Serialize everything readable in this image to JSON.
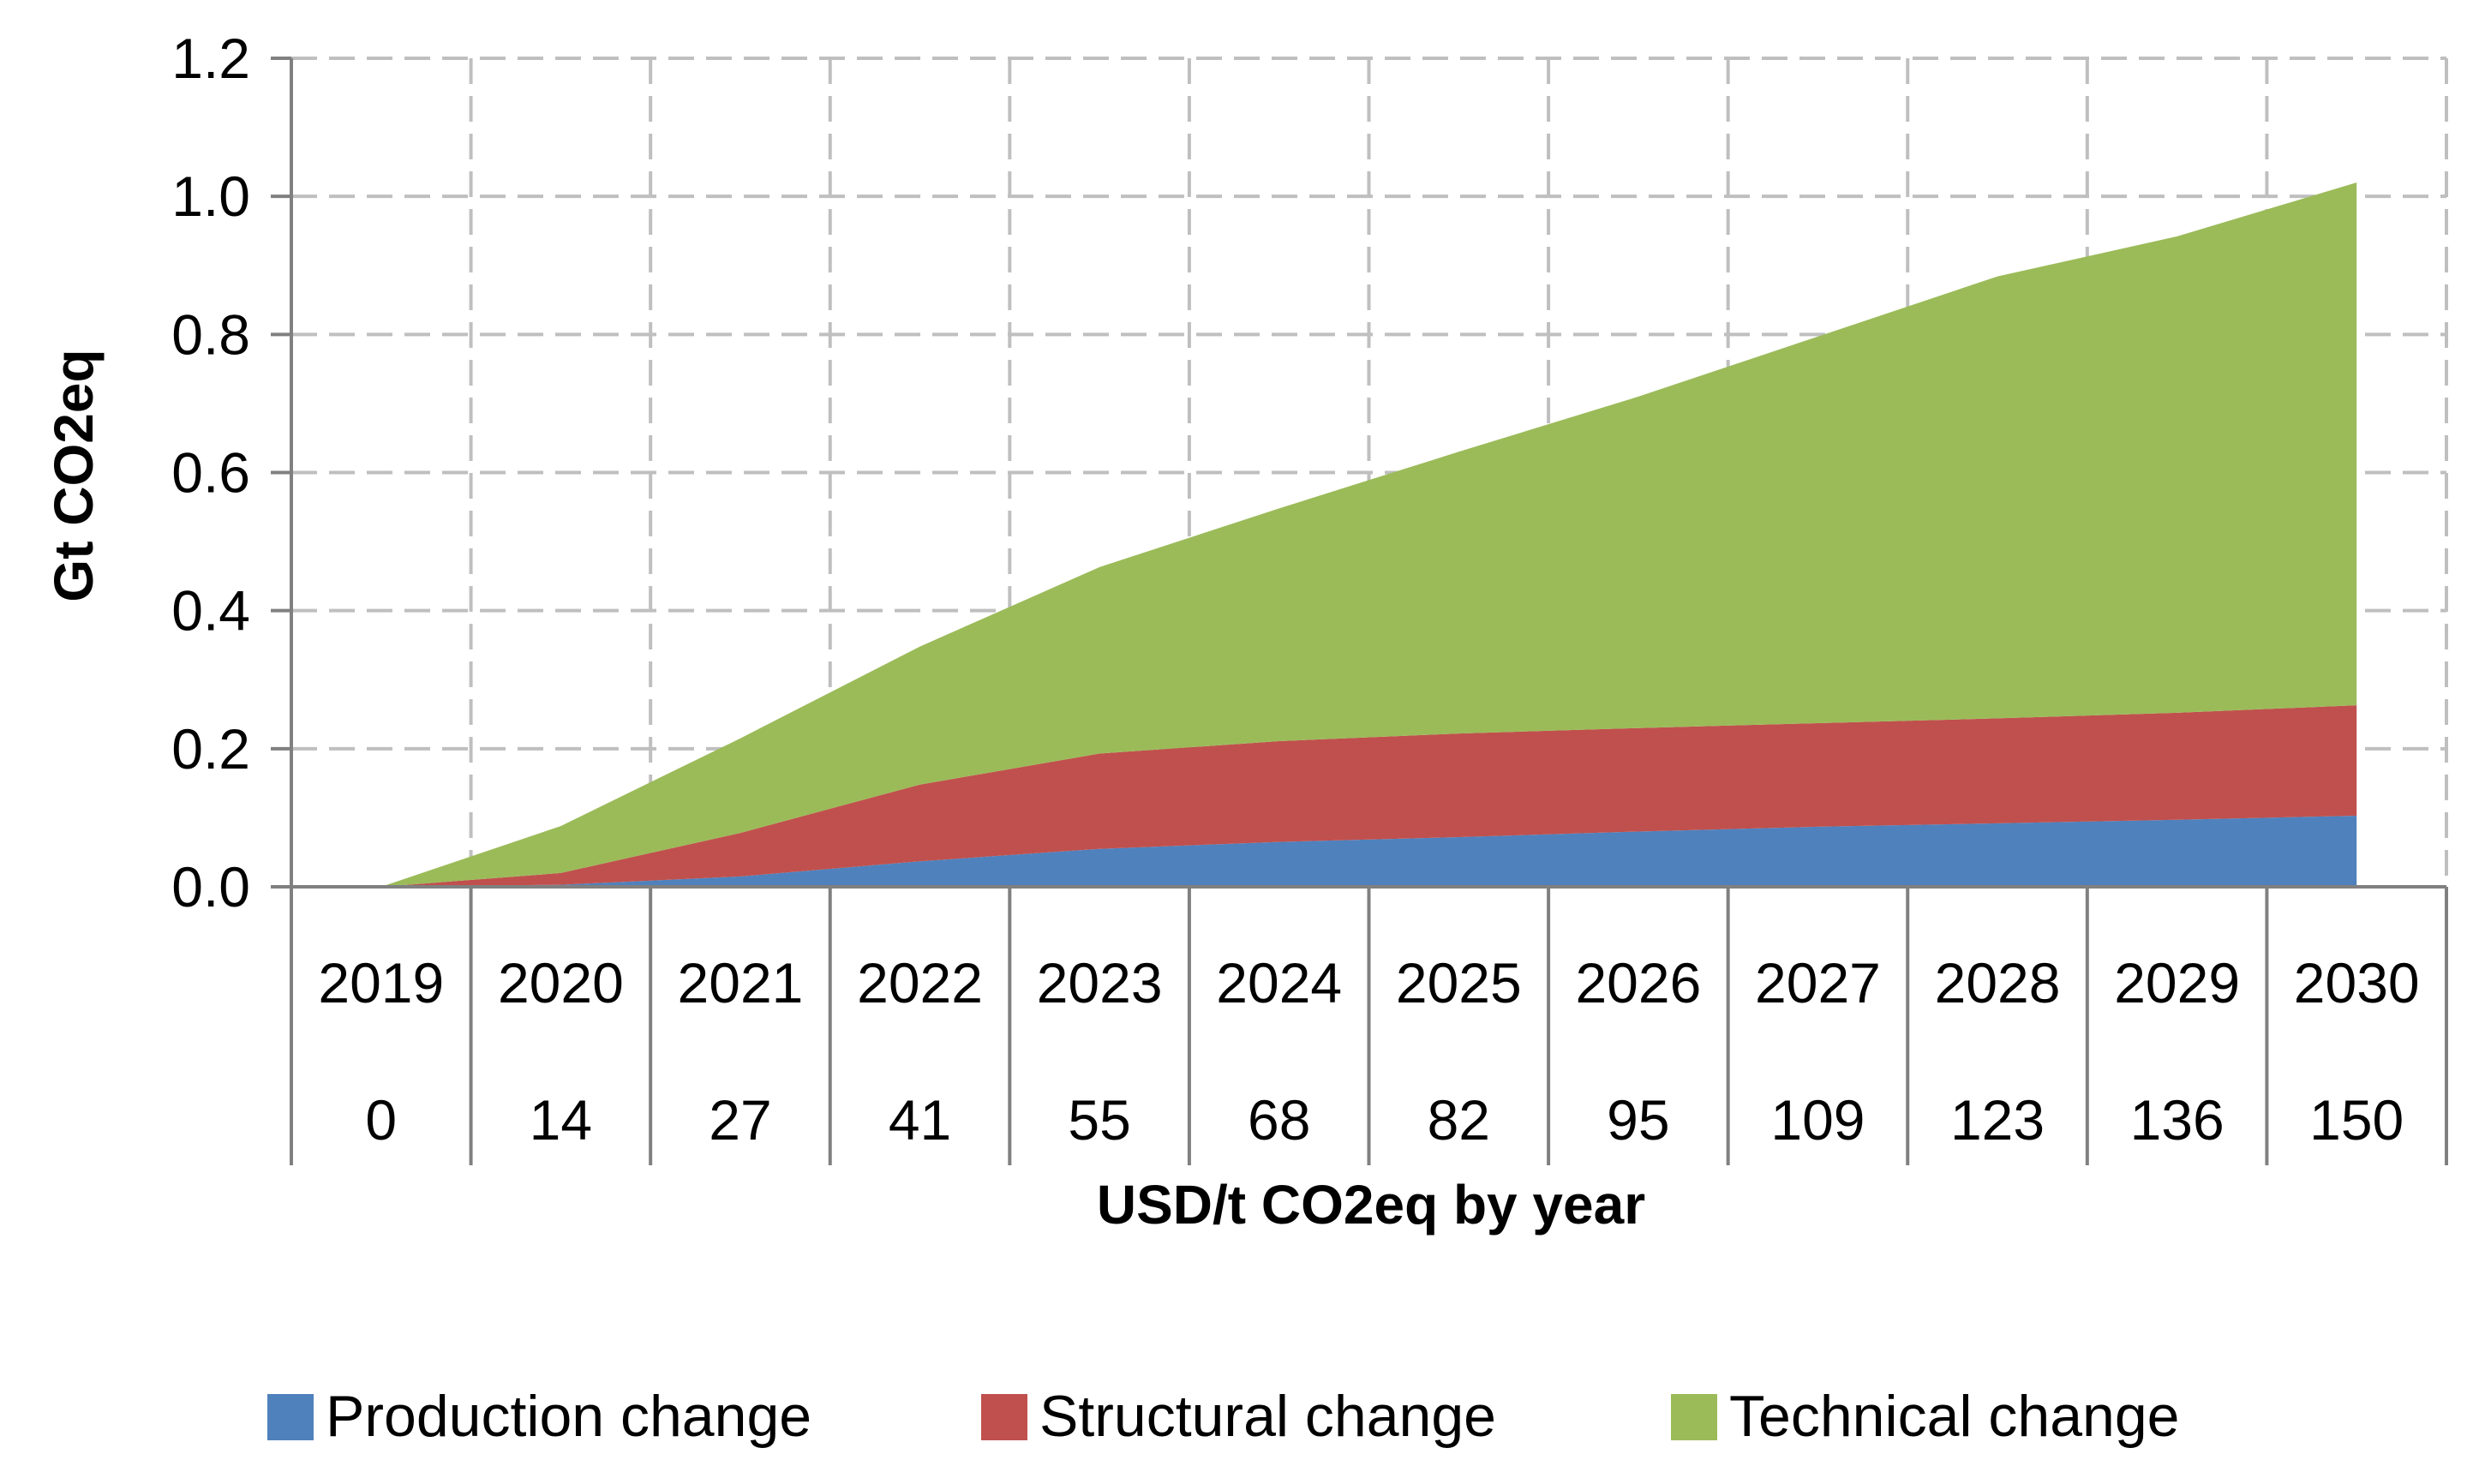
{
  "chart_data": {
    "type": "area",
    "stacked": true,
    "title": "",
    "ylabel": "Gt CO2eq",
    "xlabel": "USD/t CO2eq by year",
    "ylim": [
      0,
      1.2
    ],
    "yticks": [
      "0.0",
      "0.2",
      "0.4",
      "0.6",
      "0.8",
      "1.0",
      "1.2"
    ],
    "categories": [
      {
        "year": "2019",
        "price": "0"
      },
      {
        "year": "2020",
        "price": "14"
      },
      {
        "year": "2021",
        "price": "27"
      },
      {
        "year": "2022",
        "price": "41"
      },
      {
        "year": "2023",
        "price": "55"
      },
      {
        "year": "2024",
        "price": "68"
      },
      {
        "year": "2025",
        "price": "82"
      },
      {
        "year": "2026",
        "price": "95"
      },
      {
        "year": "2027",
        "price": "109"
      },
      {
        "year": "2028",
        "price": "123"
      },
      {
        "year": "2029",
        "price": "136"
      },
      {
        "year": "2030",
        "price": "150"
      }
    ],
    "series": [
      {
        "name": "Production change",
        "color": "#4f81bd",
        "values": [
          0.0,
          0.003,
          0.015,
          0.037,
          0.055,
          0.065,
          0.072,
          0.08,
          0.087,
          0.092,
          0.097,
          0.103
        ]
      },
      {
        "name": "Structural change",
        "color": "#c0504d",
        "values": [
          0.0,
          0.017,
          0.063,
          0.111,
          0.138,
          0.146,
          0.15,
          0.15,
          0.15,
          0.152,
          0.155,
          0.16
        ]
      },
      {
        "name": "Technical change",
        "color": "#9bbb59",
        "values": [
          0.0,
          0.068,
          0.137,
          0.2,
          0.27,
          0.337,
          0.408,
          0.48,
          0.56,
          0.64,
          0.69,
          0.757
        ]
      }
    ],
    "grid": true,
    "legend_position": "bottom"
  }
}
